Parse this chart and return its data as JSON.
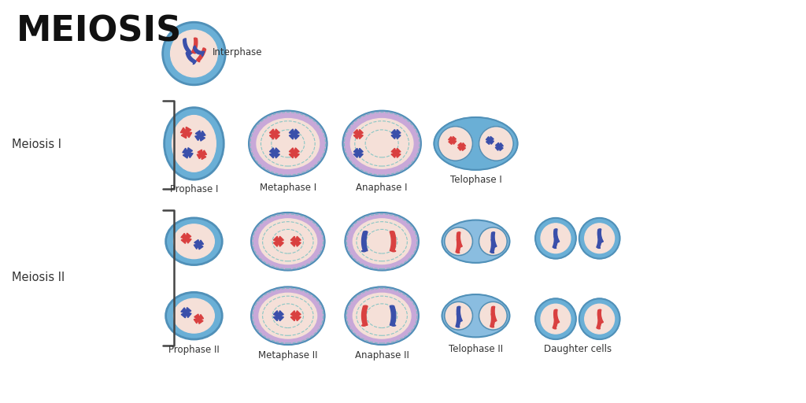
{
  "title": "MEIOSIS",
  "bg_color": "#ffffff",
  "cell_outer_blue": "#6aafd6",
  "cell_outer_blue2": "#8abde0",
  "cell_outer_purple": "#c8a8d8",
  "cell_inner_color": "#f5e0d8",
  "chr_red": "#d94040",
  "chr_blue": "#3a4faa",
  "chr_purple": "#7840a0",
  "spindle_color": "#70c0c0",
  "meiosis1_label": "Meiosis I",
  "meiosis2_label": "Meiosis II",
  "label_fontsize": 8.5,
  "title_fontsize": 32
}
